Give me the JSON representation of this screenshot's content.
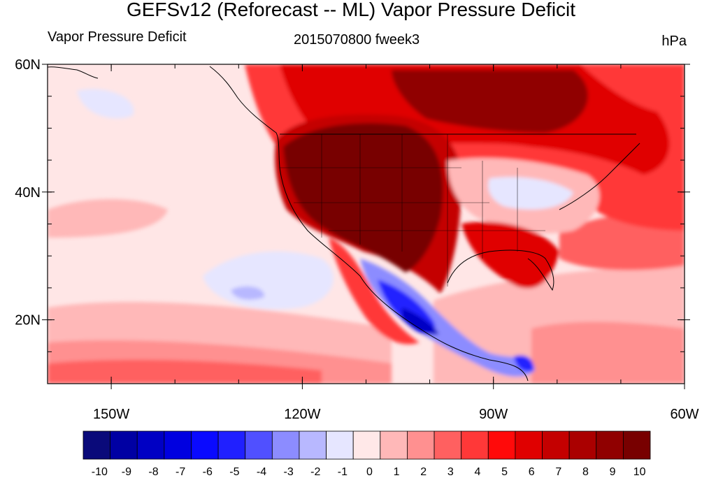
{
  "title": "GEFSv12 (Reforecast -- ML) Vapor Pressure Deficit",
  "left_label": "Vapor Pressure Deficit",
  "center_label": "2015070800 fweek3",
  "right_label": "hPa",
  "map": {
    "lon_range": [
      -160,
      -60
    ],
    "lat_range": [
      10,
      60
    ],
    "lat_ticks": [
      {
        "lat": 60,
        "label": "60N"
      },
      {
        "lat": 40,
        "label": "40N"
      },
      {
        "lat": 20,
        "label": "20N"
      }
    ],
    "lon_ticks": [
      {
        "lon": -150,
        "label": "150W"
      },
      {
        "lon": -120,
        "label": "120W"
      },
      {
        "lon": -90,
        "label": "90W"
      },
      {
        "lon": -60,
        "label": "60W"
      }
    ],
    "ocean_color": "#ffe6e6"
  },
  "colorbar": {
    "colors": [
      "#0a0a7a",
      "#0000a3",
      "#0000c4",
      "#0000e0",
      "#0a0aff",
      "#2020ff",
      "#5050ff",
      "#8c8cff",
      "#b8b8ff",
      "#e6e6ff",
      "#ffe8e8",
      "#ffb8b8",
      "#ff9090",
      "#ff6060",
      "#ff3838",
      "#ff0a0a",
      "#e00000",
      "#c40000",
      "#aa0000",
      "#900000",
      "#780000"
    ],
    "labels": [
      "-10",
      "-9",
      "-8",
      "-7",
      "-6",
      "-5",
      "-4",
      "-3",
      "-2",
      "-1",
      "0",
      "1",
      "2",
      "3",
      "4",
      "5",
      "6",
      "7",
      "8",
      "9",
      "10"
    ]
  }
}
